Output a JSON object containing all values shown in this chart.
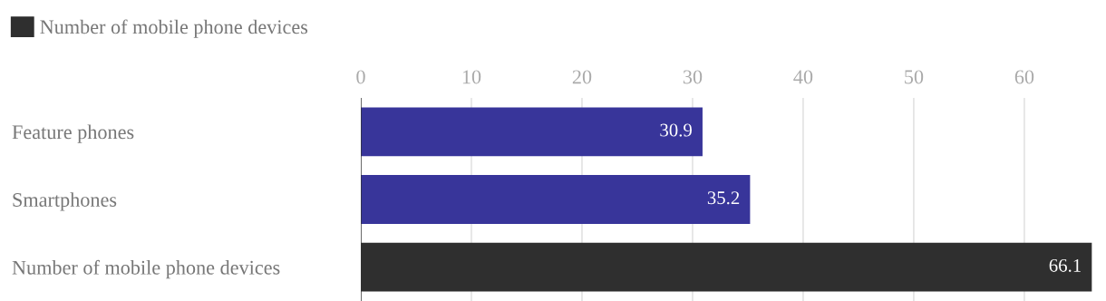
{
  "chart_data": {
    "type": "bar",
    "orientation": "horizontal",
    "categories": [
      "Feature phones",
      "Smartphones",
      "Number of mobile phone devices"
    ],
    "series": [
      {
        "color": "#38359a",
        "values": [
          30.9,
          35.2,
          null
        ]
      },
      {
        "name": "Number of mobile phone devices",
        "color": "#2f2f2f",
        "values": [
          null,
          null,
          66.1
        ]
      }
    ],
    "xlim": [
      0,
      66.4
    ],
    "xticks": [
      0,
      10,
      20,
      30,
      40,
      50,
      60
    ],
    "grid": "x",
    "legend": "top left",
    "data_labels": true
  }
}
